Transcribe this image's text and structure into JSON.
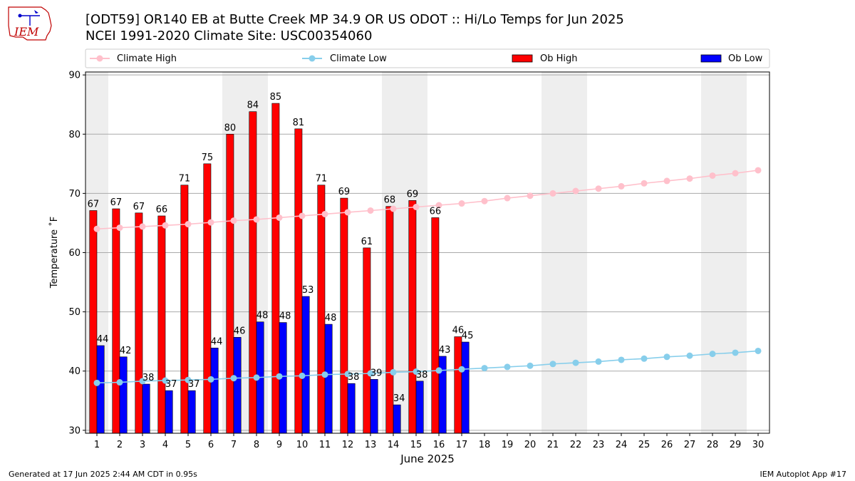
{
  "header": {
    "title_line1": "[ODT59] OR140 EB at Butte Creek MP 34.9  OR US ODOT :: Hi/Lo Temps for Jun 2025",
    "title_line2": "NCEI 1991-2020 Climate Site: USC00354060",
    "logo_text": "IEM"
  },
  "footer": {
    "left": "Generated at 17 Jun 2025 2:44 AM CDT in 0.95s",
    "right": "IEM Autoplot App #17"
  },
  "colors": {
    "climate_high": "#ffc0cb",
    "climate_low": "#87ceeb",
    "ob_high": "#ff0000",
    "ob_low": "#0000ff",
    "weekend_shade": "#eeeeee",
    "grid": "#aaaaaa"
  },
  "chart_data": {
    "type": "bar",
    "title": "[ODT59] OR140 EB at Butte Creek MP 34.9  OR US ODOT :: Hi/Lo Temps for Jun 2025",
    "subtitle": "NCEI 1991-2020 Climate Site: USC00354060",
    "xlabel": "June 2025",
    "ylabel": "Temperature ˚F",
    "ylim": [
      29.5,
      90.5
    ],
    "yticks": [
      30,
      40,
      50,
      60,
      70,
      80,
      90
    ],
    "grid": true,
    "legend_position": "top",
    "days": [
      1,
      2,
      3,
      4,
      5,
      6,
      7,
      8,
      9,
      10,
      11,
      12,
      13,
      14,
      15,
      16,
      17,
      18,
      19,
      20,
      21,
      22,
      23,
      24,
      25,
      26,
      27,
      28,
      29,
      30
    ],
    "shaded_days": [
      1,
      7,
      8,
      14,
      15,
      21,
      22,
      28,
      29
    ],
    "series": [
      {
        "name": "Climate High",
        "kind": "line",
        "values": [
          64.0,
          64.2,
          64.4,
          64.6,
          64.8,
          65.1,
          65.4,
          65.6,
          65.9,
          66.2,
          66.5,
          66.8,
          67.1,
          67.4,
          67.7,
          68.0,
          68.3,
          68.7,
          69.2,
          69.6,
          70.0,
          70.4,
          70.8,
          71.2,
          71.7,
          72.1,
          72.5,
          73.0,
          73.4,
          73.9
        ]
      },
      {
        "name": "Climate Low",
        "kind": "line",
        "values": [
          38.0,
          38.1,
          38.3,
          38.4,
          38.5,
          38.6,
          38.8,
          38.9,
          39.1,
          39.2,
          39.4,
          39.5,
          39.6,
          39.8,
          39.9,
          40.1,
          40.3,
          40.5,
          40.7,
          40.9,
          41.2,
          41.4,
          41.6,
          41.9,
          42.1,
          42.4,
          42.6,
          42.9,
          43.1,
          43.4
        ]
      },
      {
        "name": "Ob High",
        "kind": "bar",
        "values": [
          67.1,
          67.4,
          66.7,
          66.2,
          71.4,
          75.0,
          80.0,
          83.8,
          85.2,
          80.9,
          71.4,
          69.2,
          60.8,
          67.8,
          68.8,
          65.9,
          45.8
        ],
        "labels": [
          "67",
          "67",
          "67",
          "66",
          "71",
          "75",
          "80",
          "84",
          "85",
          "81",
          "71",
          "69",
          "61",
          "68",
          "69",
          "66",
          "46"
        ]
      },
      {
        "name": "Ob Low",
        "kind": "bar",
        "values": [
          44.3,
          42.4,
          37.8,
          36.7,
          36.7,
          43.9,
          45.7,
          48.3,
          48.2,
          52.6,
          47.9,
          37.9,
          38.6,
          34.3,
          38.3,
          42.5,
          44.9
        ],
        "labels": [
          "44",
          "42",
          "38",
          "37",
          "37",
          "44",
          "46",
          "48",
          "48",
          "53",
          "48",
          "38",
          "39",
          "34",
          "38",
          "43",
          "45"
        ]
      }
    ]
  }
}
